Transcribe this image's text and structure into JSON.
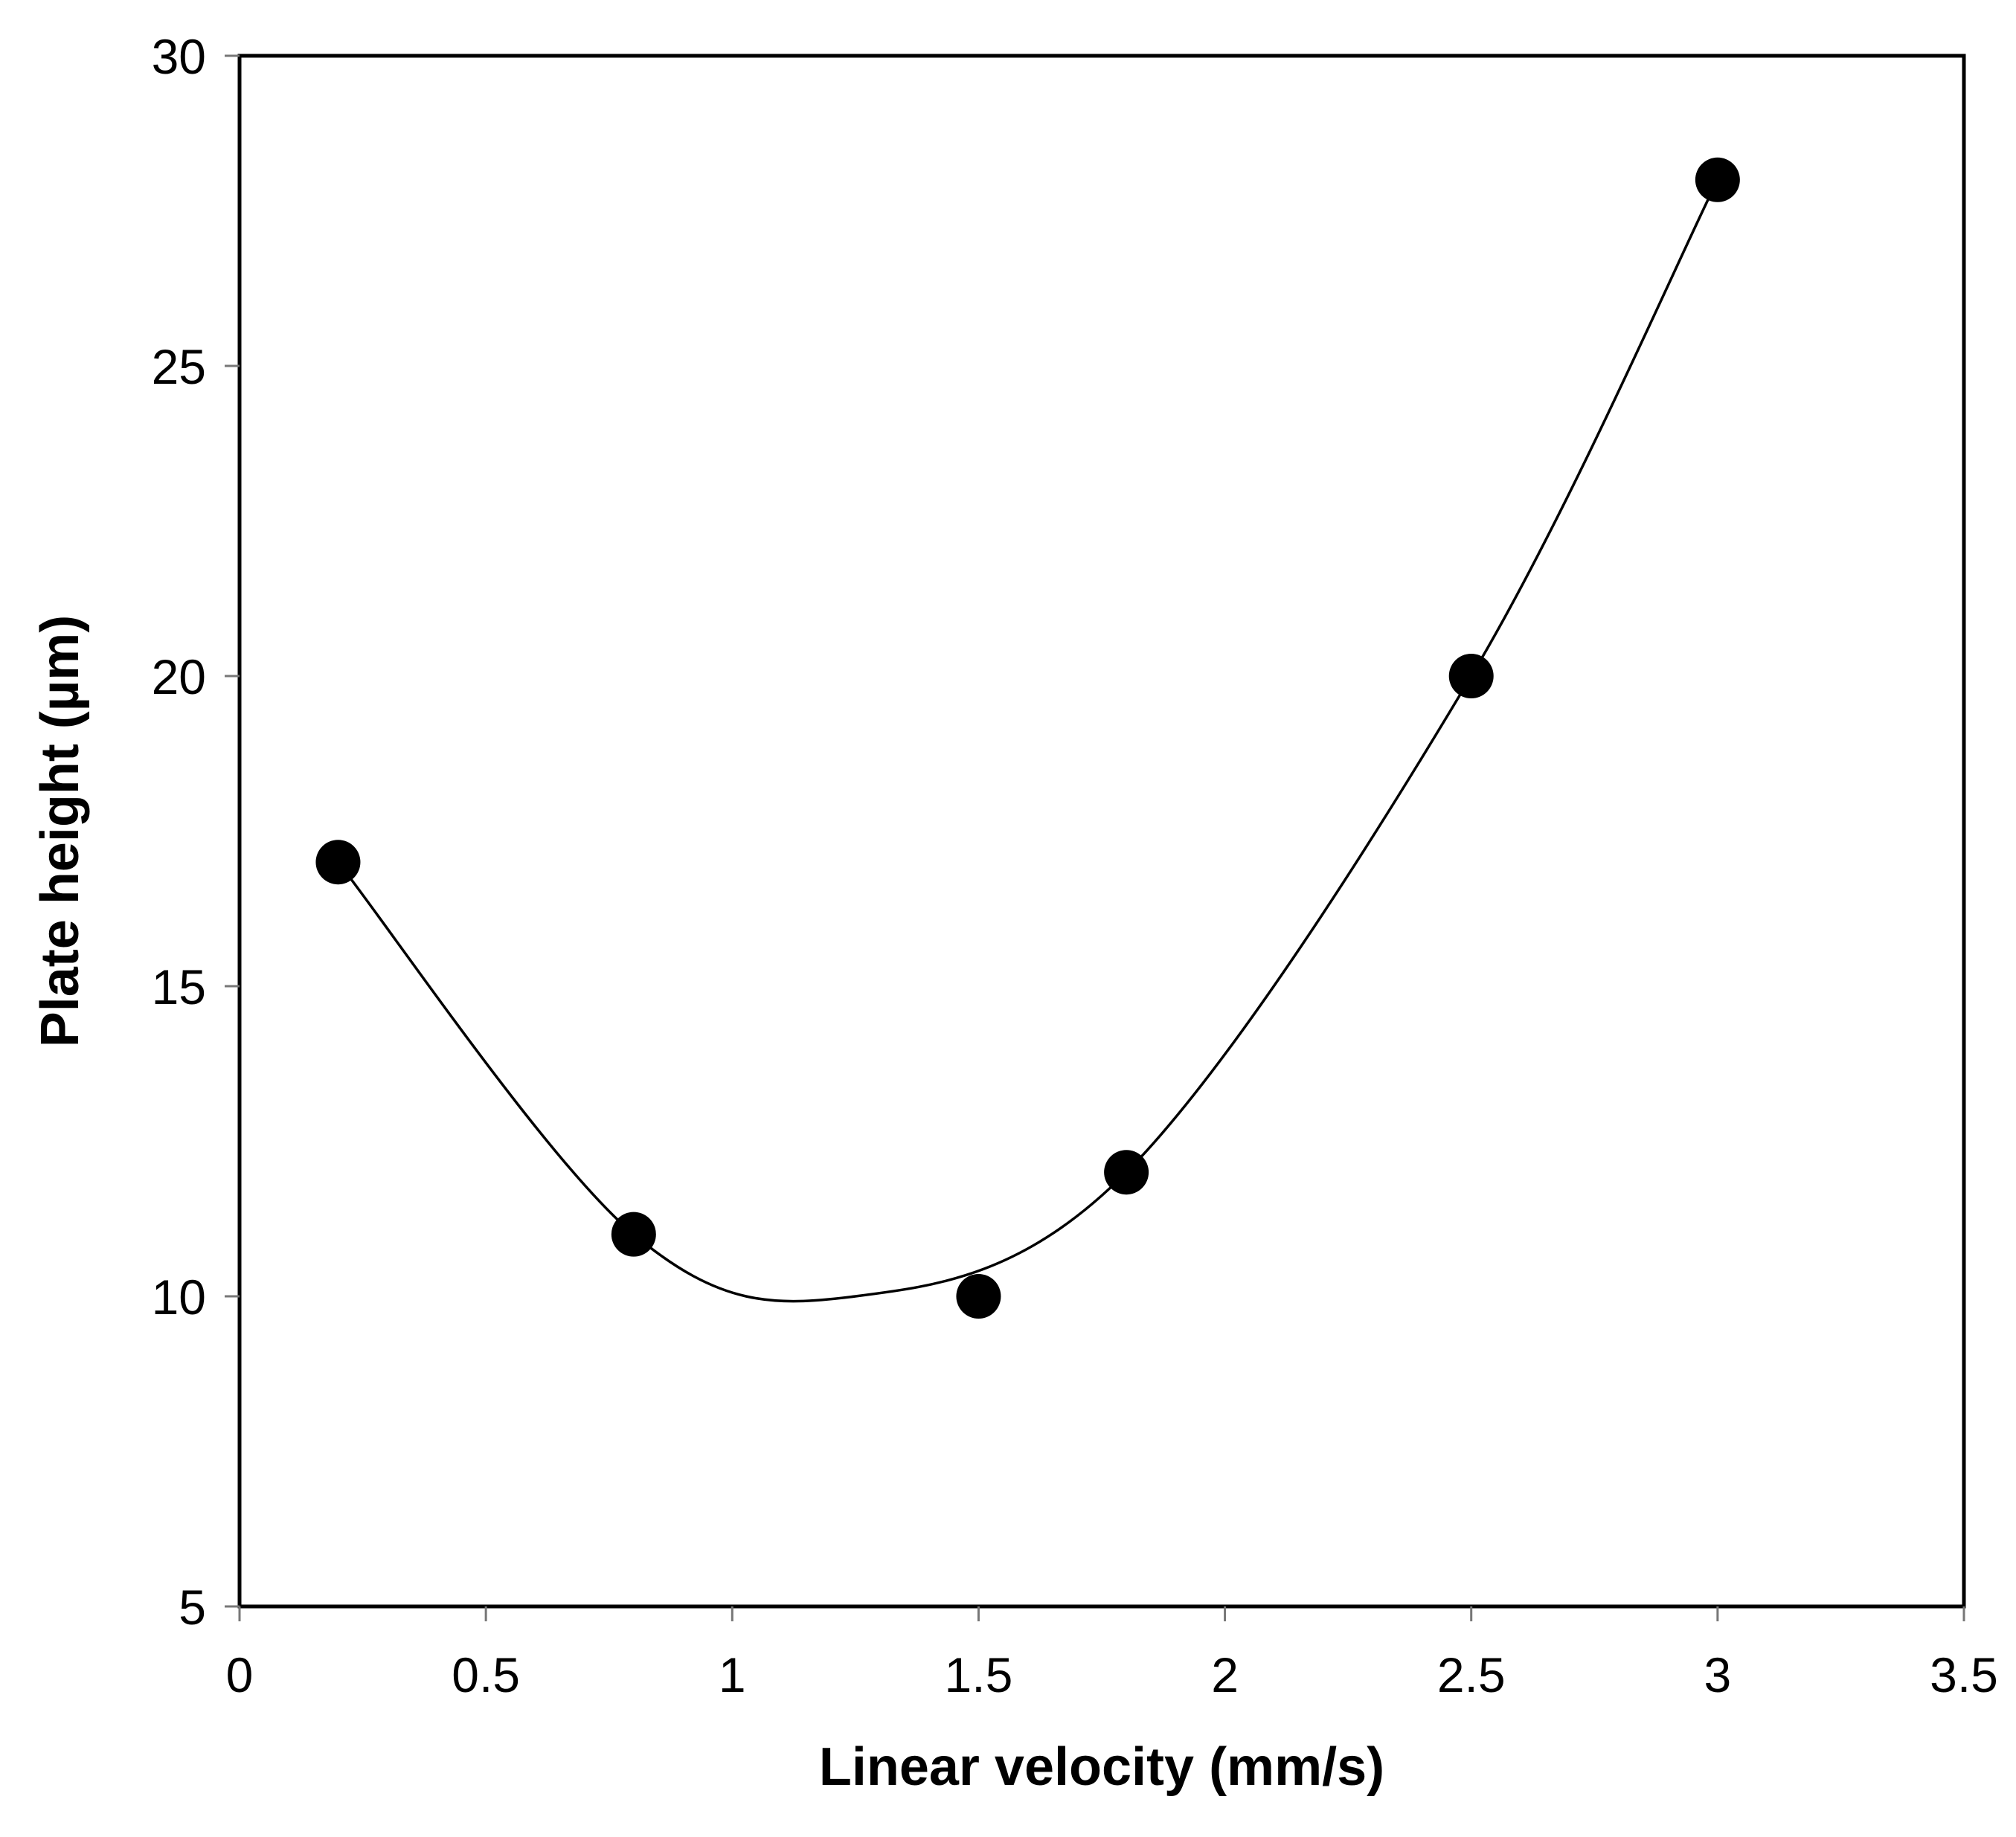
{
  "chart_data": {
    "type": "scatter",
    "title": "",
    "xlabel": "Linear velocity (mm/s)",
    "ylabel": "Plate height (µm)",
    "xlim": [
      0,
      3.5
    ],
    "ylim": [
      5,
      30
    ],
    "xticks": [
      0,
      0.5,
      1,
      1.5,
      2,
      2.5,
      3,
      3.5
    ],
    "xtick_labels": [
      "0",
      "0.5",
      "1",
      "1.5",
      "2",
      "2.5",
      "3",
      "3.5"
    ],
    "yticks": [
      5,
      10,
      15,
      20,
      25,
      30
    ],
    "ytick_labels": [
      "5",
      "10",
      "15",
      "20",
      "25",
      "30"
    ],
    "grid": false,
    "legend": "none",
    "series": [
      {
        "name": "Plate height",
        "kind": "scatter",
        "color": "#000000",
        "x": [
          0.2,
          0.8,
          1.5,
          1.8,
          2.5,
          3.0
        ],
        "y": [
          17,
          11,
          10,
          12,
          20,
          28
        ]
      },
      {
        "name": "Fitted curve",
        "kind": "line",
        "color": "#000000",
        "smooth": true,
        "x_range": [
          0.2,
          3.0
        ],
        "y_min": 10,
        "y_min_at_x": 1.25
      }
    ]
  }
}
